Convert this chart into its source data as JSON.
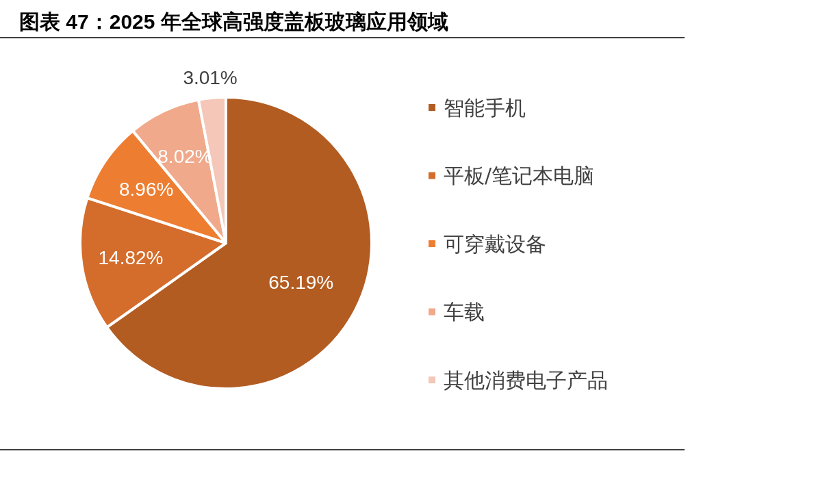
{
  "chart_data": {
    "type": "pie",
    "title": "图表 47：2025 年全球高强度盖板玻璃应用领域",
    "categories": [
      "智能手机",
      "平板/笔记本电脑",
      "可穿戴设备",
      "车载",
      "其他消费电子产品"
    ],
    "values": [
      65.19,
      14.82,
      8.96,
      8.02,
      3.01
    ],
    "value_labels": [
      "65.19%",
      "14.82%",
      "8.96%",
      "8.02%",
      "3.01%"
    ],
    "colors": [
      "#b35c22",
      "#d46c2b",
      "#ed7d31",
      "#f0a98a",
      "#f4c7b8"
    ],
    "legend": "right"
  }
}
